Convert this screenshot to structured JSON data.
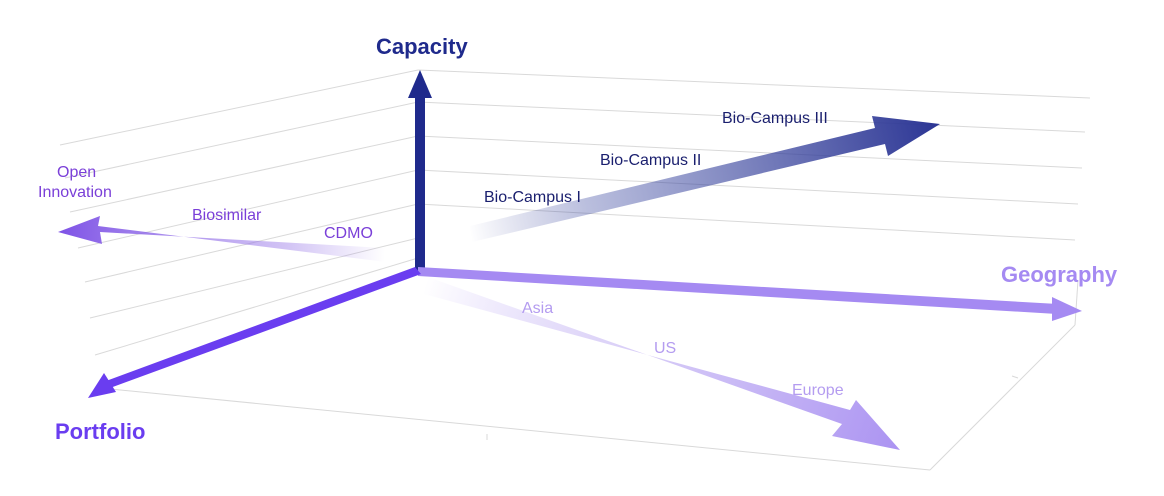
{
  "colors": {
    "capacity": "#1f2a8c",
    "portfolio": "#6a3df0",
    "geography": "#a58af2",
    "portfolio_items": "#7a3fd8",
    "capacity_items": "#1a1f6e",
    "geography_items": "#b49cf0",
    "grid": "#d9d9d9"
  },
  "axes": {
    "capacity": {
      "label": "Capacity"
    },
    "geography": {
      "label": "Geography"
    },
    "portfolio": {
      "label": "Portfolio"
    }
  },
  "capacity_items": [
    "Bio-Campus I",
    "Bio-Campus II",
    "Bio-Campus III"
  ],
  "portfolio_items": {
    "cdmo": "CDMO",
    "biosimilar": "Biosimilar",
    "open_line1": "Open",
    "open_line2": "Innovation"
  },
  "geography_items": [
    "Asia",
    "US",
    "Europe"
  ]
}
